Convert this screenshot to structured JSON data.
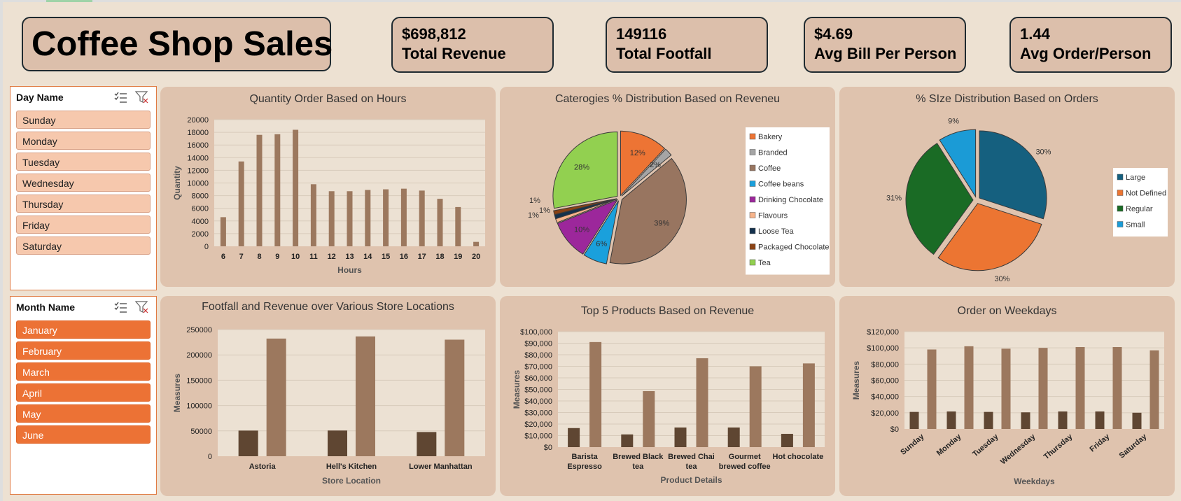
{
  "title": "Coffee Shop Sales",
  "kpis": [
    {
      "value": "$698,812",
      "label": "Total Revenue"
    },
    {
      "value": "149116",
      "label": "Total Footfall"
    },
    {
      "value": "$4.69",
      "label": "Avg Bill Per Person"
    },
    {
      "value": "1.44",
      "label": "Avg Order/Person"
    }
  ],
  "slicers": {
    "day": {
      "title": "Day Name",
      "items": [
        "Sunday",
        "Monday",
        "Tuesday",
        "Wednesday",
        "Thursday",
        "Friday",
        "Saturday"
      ]
    },
    "month": {
      "title": "Month Name",
      "items": [
        "January",
        "February",
        "March",
        "April",
        "May",
        "June"
      ]
    }
  },
  "colors": {
    "bar_light": "#9c785e",
    "bar_dark": "#5f4632",
    "panel": "#dfc3ae",
    "plot": "#ece1d3",
    "slicer_day": "#f6c8ad",
    "slicer_month": "#ec7235"
  },
  "chart_data": [
    {
      "id": "hours",
      "type": "bar",
      "title": "Quantity Order Based on Hours",
      "xlabel": "Hours",
      "ylabel": "Quantity",
      "ylim": [
        0,
        20000
      ],
      "yticks": [
        "0",
        "2000",
        "4000",
        "6000",
        "8000",
        "10000",
        "12000",
        "14000",
        "16000",
        "18000",
        "20000"
      ],
      "categories": [
        "6",
        "7",
        "8",
        "9",
        "10",
        "11",
        "12",
        "13",
        "14",
        "15",
        "16",
        "17",
        "18",
        "19",
        "20"
      ],
      "values": [
        4600,
        13400,
        17600,
        17700,
        18400,
        9800,
        8700,
        8700,
        8900,
        9000,
        9100,
        8800,
        7500,
        6200,
        700
      ]
    },
    {
      "id": "categories",
      "type": "pie",
      "title": "Caterogies % Distribution Based on Reveneu",
      "slices": [
        {
          "name": "Bakery",
          "value": 12,
          "label": "12%",
          "color": "#ed7434"
        },
        {
          "name": "Branded",
          "value": 2,
          "label": "2%",
          "color": "#a5a5a5"
        },
        {
          "name": "Coffee",
          "value": 39,
          "label": "39%",
          "color": "#987560"
        },
        {
          "name": "Coffee beans",
          "value": 6,
          "label": "6%",
          "color": "#1aa0dc"
        },
        {
          "name": "Drinking Chocolate",
          "value": 10,
          "label": "10%",
          "color": "#9c279b"
        },
        {
          "name": "Flavours",
          "value": 1,
          "label": "1%",
          "color": "#f7b48b"
        },
        {
          "name": "Loose Tea",
          "value": 1,
          "label": "1%",
          "color": "#14314d"
        },
        {
          "name": "Packaged Chocolate",
          "value": 1,
          "label": "1%",
          "color": "#8a4215"
        },
        {
          "name": "Tea",
          "value": 28,
          "label": "28%",
          "color": "#92d050"
        }
      ]
    },
    {
      "id": "size",
      "type": "pie",
      "title": "% SIze Distribution Based on Orders",
      "slices": [
        {
          "name": "Large",
          "value": 30,
          "label": "30%",
          "color": "#15607f"
        },
        {
          "name": "Not Defined",
          "value": 30,
          "label": "30%",
          "color": "#ec7532"
        },
        {
          "name": "Regular",
          "value": 31,
          "label": "31%",
          "color": "#1a6b25"
        },
        {
          "name": "Small",
          "value": 9,
          "label": "9%",
          "color": "#1b9bd6"
        }
      ]
    },
    {
      "id": "locations",
      "type": "bar",
      "title": "Footfall and Revenue over Various Store Locations",
      "xlabel": "Store Location",
      "ylabel": "Measures",
      "ylim": [
        0,
        250000
      ],
      "yticks": [
        "0",
        "50000",
        "100000",
        "150000",
        "200000",
        "250000"
      ],
      "categories": [
        "Astoria",
        "Hell's Kitchen",
        "Lower Manhattan"
      ],
      "series": [
        {
          "values": [
            50599,
            50735,
            47782
          ]
        },
        {
          "values": [
            232243,
            236511,
            230057
          ]
        }
      ]
    },
    {
      "id": "products",
      "type": "bar",
      "title": "Top 5 Products Based on Revenue",
      "xlabel": "Product Details",
      "ylabel": "Measures",
      "ylim": [
        0,
        100000
      ],
      "yticks": [
        "$0",
        "$10,000",
        "$20,000",
        "$30,000",
        "$40,000",
        "$50,000",
        "$60,000",
        "$70,000",
        "$80,000",
        "$90,000",
        "$100,000"
      ],
      "categories": [
        [
          "Barista",
          "Espresso"
        ],
        [
          "Brewed Black",
          "tea"
        ],
        [
          "Brewed Chai",
          "tea"
        ],
        [
          "Gourmet",
          "brewed coffee"
        ],
        [
          "Hot chocolate"
        ]
      ],
      "series": [
        {
          "values": [
            16500,
            11000,
            17000,
            17000,
            11500
          ]
        },
        {
          "values": [
            91000,
            48500,
            77000,
            70000,
            72500
          ]
        }
      ]
    },
    {
      "id": "weekdays",
      "type": "bar",
      "title": "Order on Weekdays",
      "xlabel": "Weekdays",
      "ylabel": "Measures",
      "ylim": [
        0,
        120000
      ],
      "yticks": [
        "$0",
        "$20,000",
        "$40,000",
        "$60,000",
        "$80,000",
        "$100,000",
        "$120,000"
      ],
      "categories": [
        "Sunday",
        "Monday",
        "Tuesday",
        "Wednesday",
        "Thursday",
        "Friday",
        "Saturday"
      ],
      "series": [
        {
          "values": [
            21000,
            21500,
            21000,
            20500,
            21500,
            21500,
            20000
          ]
        },
        {
          "values": [
            98000,
            102000,
            99000,
            100000,
            101000,
            101000,
            97000
          ]
        }
      ]
    }
  ]
}
